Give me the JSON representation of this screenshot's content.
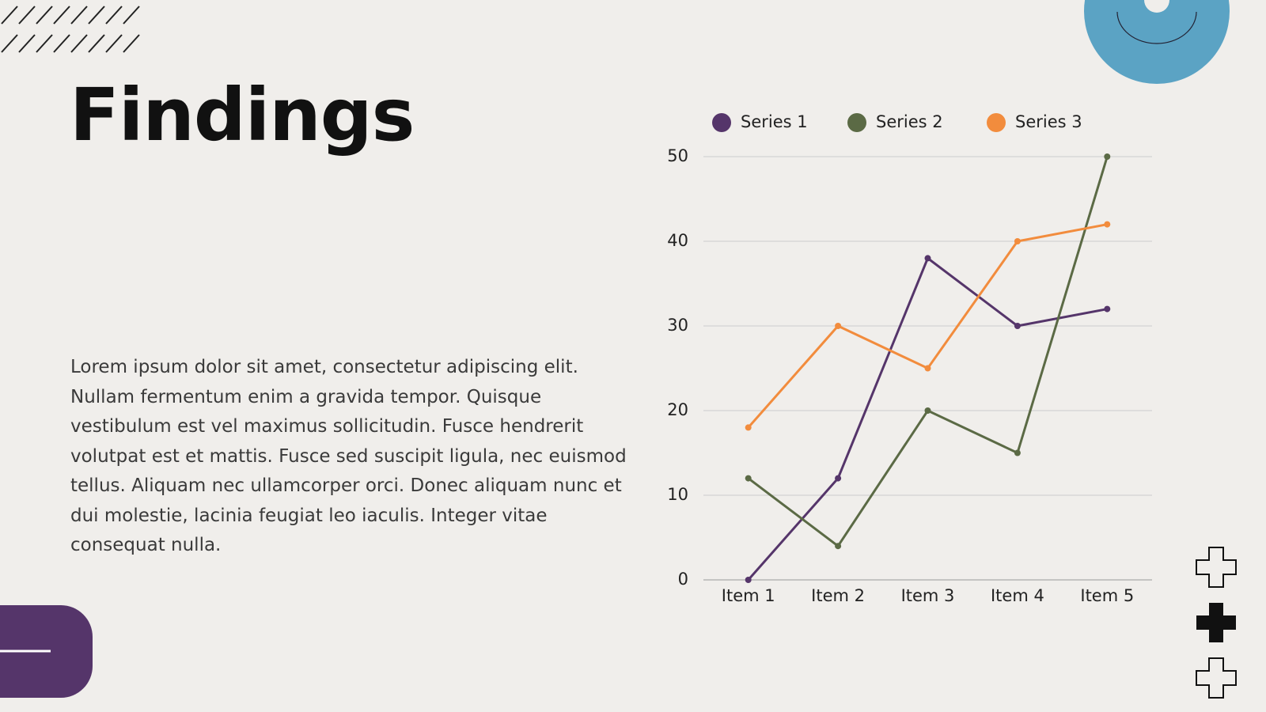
{
  "title": "Findings",
  "body": "Lorem ipsum dolor sit amet, consectetur adipiscing elit. Nullam fermentum enim a gravida tempor. Quisque vestibulum est vel maximus sollicitudin. Fusce hendrerit volutpat est et mattis. Fusce sed suscipit ligula, nec euismod tellus. Aliquam nec ullamcorper orci. Donec aliquam nunc et dui molestie, lacinia feugiat leo iaculis. Integer vitae consequat nulla.",
  "chart_data": {
    "type": "line",
    "categories": [
      "Item 1",
      "Item 2",
      "Item 3",
      "Item 4",
      "Item 5"
    ],
    "series": [
      {
        "name": "Series 1",
        "color": "#55356a",
        "values": [
          0,
          12,
          38,
          30,
          32
        ]
      },
      {
        "name": "Series 2",
        "color": "#5b6a45",
        "values": [
          12,
          4,
          20,
          15,
          50
        ]
      },
      {
        "name": "Series 3",
        "color": "#f28c3d",
        "values": [
          18,
          30,
          25,
          40,
          42
        ]
      }
    ],
    "ylim": [
      0,
      50
    ],
    "yticks": [
      0,
      10,
      20,
      30,
      40,
      50
    ],
    "grid": true,
    "legend": "top"
  }
}
